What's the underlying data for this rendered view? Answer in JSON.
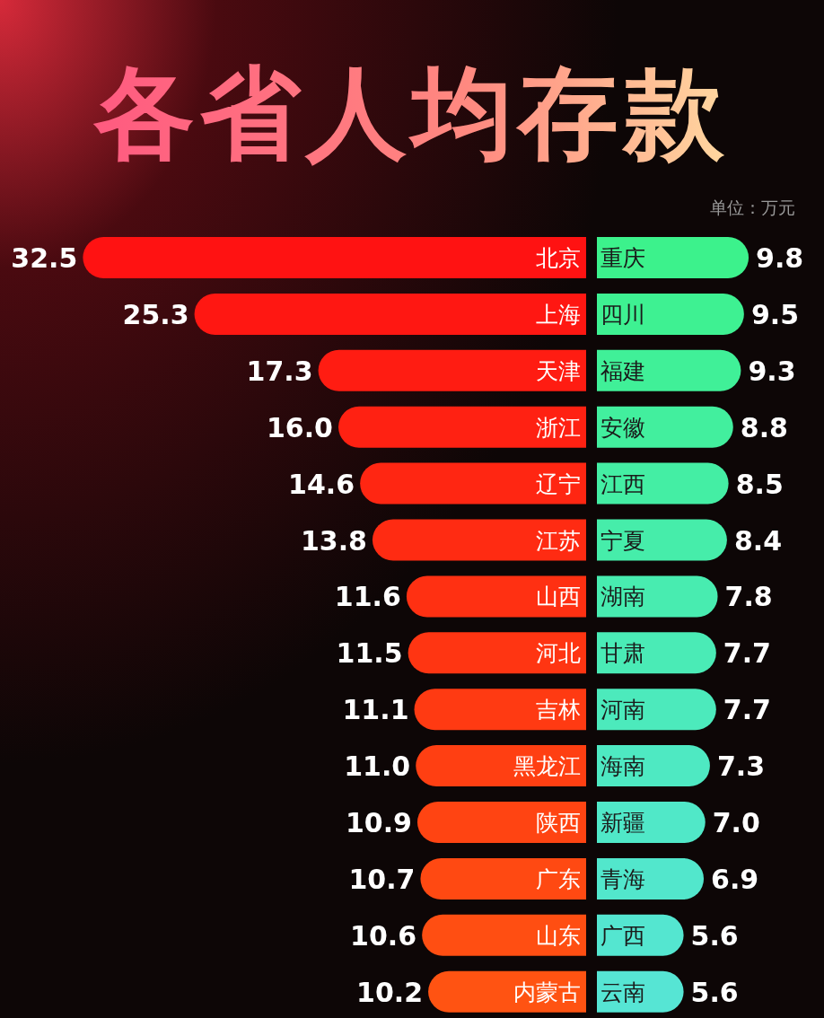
{
  "chart_data": [
    {
      "type": "bar",
      "orientation": "horizontal",
      "title": "各省人均存款",
      "annotations": [
        "单位：万元"
      ],
      "categories": [
        "北京",
        "上海",
        "天津",
        "浙江",
        "辽宁",
        "江苏",
        "山西",
        "河北",
        "吉林",
        "黑龙江",
        "陕西",
        "广东",
        "山东",
        "内蒙古"
      ],
      "values": [
        32.5,
        25.3,
        17.3,
        16.0,
        14.6,
        13.8,
        11.6,
        11.5,
        11.1,
        11.0,
        10.9,
        10.7,
        10.6,
        10.2
      ],
      "value_labels": [
        "32.5",
        "25.3",
        "17.3",
        "16.0",
        "14.6",
        "13.8",
        "11.6",
        "11.5",
        "11.1",
        "11.0",
        "10.9",
        "10.7",
        "10.6",
        "10.2"
      ],
      "colors": [
        "#ff1212",
        "#ff1712",
        "#ff1c12",
        "#ff2112",
        "#ff2612",
        "#ff2b12",
        "#ff3012",
        "#ff3512",
        "#ff3a12",
        "#ff3f12",
        "#ff4412",
        "#ff4912",
        "#ff4e12",
        "#ff5312"
      ]
    },
    {
      "type": "bar",
      "orientation": "horizontal",
      "categories": [
        "重庆",
        "四川",
        "福建",
        "安徽",
        "江西",
        "宁夏",
        "湖南",
        "甘肃",
        "河南",
        "海南",
        "新疆",
        "青海",
        "广西",
        "云南"
      ],
      "values": [
        9.8,
        9.5,
        9.3,
        8.8,
        8.5,
        8.4,
        7.8,
        7.7,
        7.7,
        7.3,
        7.0,
        6.9,
        5.6,
        5.6
      ],
      "value_labels": [
        "9.8",
        "9.5",
        "9.3",
        "8.8",
        "8.5",
        "8.4",
        "7.8",
        "7.7",
        "7.7",
        "7.3",
        "7.0",
        "6.9",
        "5.6",
        "5.6"
      ],
      "colors": [
        "#3cf28c",
        "#3ef192",
        "#40f098",
        "#42ef9e",
        "#44eea4",
        "#46edaa",
        "#48ecb0",
        "#4aebb6",
        "#4ceabc",
        "#4ee9c2",
        "#50e8c8",
        "#52e7cc",
        "#54e6d0",
        "#56e5d4"
      ]
    }
  ]
}
